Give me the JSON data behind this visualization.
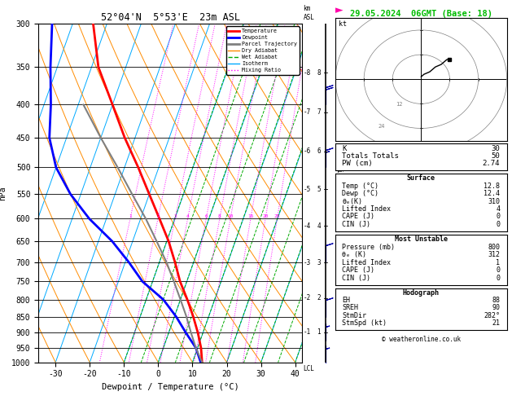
{
  "title_left": "52°04'N  5°53'E  23m ASL",
  "title_right": "29.05.2024  06GMT (Base: 18)",
  "xlabel": "Dewpoint / Temperature (°C)",
  "pressure_levels": [
    300,
    350,
    400,
    450,
    500,
    550,
    600,
    650,
    700,
    750,
    800,
    850,
    900,
    950,
    1000
  ],
  "temp_ticks": [
    -30,
    -20,
    -10,
    0,
    10,
    20,
    30,
    40
  ],
  "temp_min": -35,
  "temp_max": 42,
  "pres_min": 300,
  "pres_max": 1000,
  "skew_factor": 35.0,
  "temp_profile": {
    "pressure": [
      1000,
      950,
      900,
      850,
      800,
      750,
      700,
      650,
      600,
      550,
      500,
      450,
      400,
      350,
      300
    ],
    "temp": [
      12.8,
      11.0,
      8.5,
      5.5,
      2.0,
      -2.0,
      -5.5,
      -9.5,
      -14.5,
      -20.0,
      -26.0,
      -33.0,
      -40.0,
      -48.0,
      -54.0
    ]
  },
  "dewp_profile": {
    "pressure": [
      1000,
      950,
      900,
      850,
      800,
      750,
      700,
      650,
      600,
      550,
      500,
      450,
      400,
      350,
      300
    ],
    "temp": [
      12.4,
      9.5,
      5.0,
      0.5,
      -5.0,
      -13.0,
      -19.0,
      -26.0,
      -35.0,
      -43.0,
      -50.0,
      -55.0,
      -58.0,
      -62.0,
      -66.0
    ]
  },
  "parcel_profile": {
    "pressure": [
      1000,
      950,
      900,
      850,
      800,
      750,
      700,
      650,
      600,
      550,
      500,
      450,
      400
    ],
    "temp": [
      12.8,
      9.5,
      6.5,
      3.5,
      0.0,
      -3.8,
      -8.0,
      -13.0,
      -18.5,
      -25.0,
      -32.0,
      -40.0,
      -48.5
    ]
  },
  "legend_items": [
    {
      "label": "Temperature",
      "color": "#ff0000",
      "linestyle": "-",
      "linewidth": 2
    },
    {
      "label": "Dewpoint",
      "color": "#0000ff",
      "linestyle": "-",
      "linewidth": 2
    },
    {
      "label": "Parcel Trajectory",
      "color": "#808080",
      "linestyle": "-",
      "linewidth": 2
    },
    {
      "label": "Dry Adiabat",
      "color": "#ff8c00",
      "linestyle": "-",
      "linewidth": 1
    },
    {
      "label": "Wet Adiabat",
      "color": "#00aa00",
      "linestyle": "--",
      "linewidth": 1
    },
    {
      "label": "Isotherm",
      "color": "#00aaff",
      "linestyle": "-",
      "linewidth": 1
    },
    {
      "label": "Mixing Ratio",
      "color": "#ff00ff",
      "linestyle": ":",
      "linewidth": 1
    }
  ],
  "mixing_ratio_vals": [
    1,
    2,
    3,
    4,
    6,
    8,
    10,
    15,
    20,
    25
  ],
  "km_asl_labels": [
    1,
    2,
    3,
    4,
    5,
    6,
    7,
    8
  ],
  "km_pressures": [
    898,
    795,
    701,
    616,
    540,
    472,
    411,
    357
  ],
  "wind_barbs": [
    {
      "pressure": 400,
      "spd": 20,
      "dir": 270
    },
    {
      "pressure": 500,
      "spd": 15,
      "dir": 265
    },
    {
      "pressure": 700,
      "spd": 10,
      "dir": 250
    },
    {
      "pressure": 850,
      "spd": 8,
      "dir": 235
    },
    {
      "pressure": 925,
      "spd": 6,
      "dir": 220
    },
    {
      "pressure": 1000,
      "spd": 3,
      "dir": 210
    }
  ],
  "right_panel": {
    "k_index": 30,
    "totals_totals": 50,
    "pw_cm": 2.74,
    "surface": {
      "temp_c": 12.8,
      "dewp_c": 12.4,
      "theta_e_k": 310,
      "lifted_index": 4,
      "cape_j": 0,
      "cin_j": 0
    },
    "most_unstable": {
      "pressure_mb": 800,
      "theta_e_k": 312,
      "lifted_index": 1,
      "cape_j": 0,
      "cin_j": 0
    },
    "hodograph": {
      "EH": 88,
      "SREH": 90,
      "StmDir": 282,
      "StmSpd_kt": 21
    }
  },
  "hodo_curve_u": [
    0,
    1,
    3,
    5,
    7,
    8,
    9,
    10
  ],
  "hodo_curve_v": [
    1,
    2,
    3,
    5,
    6,
    7,
    8,
    8
  ],
  "bg_color": "#ffffff"
}
